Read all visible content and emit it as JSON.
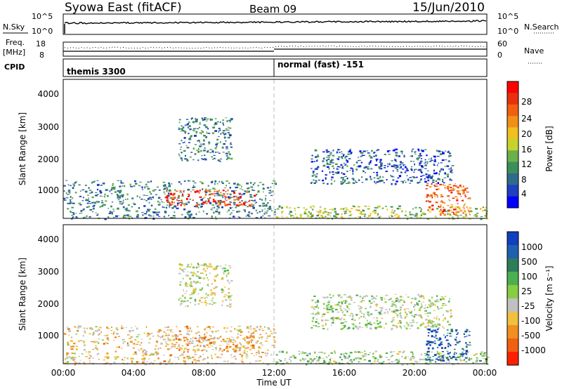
{
  "header": {
    "station": "Syowa East (fitACF)",
    "beam": "Beam 09",
    "date": "15/Jun/2010"
  },
  "nsky_panel": {
    "label": "N.Sky",
    "y_ticks": [
      "10^5",
      "10^0"
    ],
    "right_label": "N.Search",
    "right_ticks": [
      "10^5",
      "10^0"
    ]
  },
  "freq_panel": {
    "label_line1": "Freq.",
    "label_line2": "[MHz]",
    "y_ticks": [
      "18",
      "8"
    ],
    "right_label": "Nave",
    "right_ticks": [
      "60",
      "0"
    ]
  },
  "cpid_panel": {
    "label": "CPID",
    "segments": [
      "themis 3300",
      "normal (fast) -151"
    ]
  },
  "power_panel": {
    "ylabel": "Slant Range [km]",
    "y_ticks": [
      "4000",
      "3000",
      "2000",
      "1000"
    ],
    "colorbar_label": "Power [dB]",
    "colorbar_ticks": [
      "28",
      "24",
      "20",
      "16",
      "12",
      "8",
      "4"
    ],
    "colors": [
      "#0000ff",
      "#1f3fbf",
      "#2e6b8a",
      "#3c8f5a",
      "#6ab04c",
      "#c8d22e",
      "#f0c020",
      "#f09018",
      "#f06010",
      "#e83010",
      "#ff0000"
    ]
  },
  "velocity_panel": {
    "ylabel": "Slant Range [km]",
    "y_ticks": [
      "4000",
      "3000",
      "2000",
      "1000"
    ],
    "colorbar_label": "Velocity [m s⁻¹]",
    "colorbar_ticks": [
      "1000",
      "500",
      "100",
      "25",
      "-25",
      "-100",
      "-500",
      "-1000"
    ],
    "colors": [
      "#1040c0",
      "#2060b0",
      "#2e7d5a",
      "#4caf50",
      "#88cc44",
      "#c0c0c0",
      "#f0c040",
      "#f09020",
      "#f06010",
      "#ff2000"
    ]
  },
  "x_axis": {
    "ticks": [
      "00:00",
      "04:00",
      "08:00",
      "12:00",
      "16:00",
      "20:00",
      "00:00"
    ],
    "label": "Time UT"
  },
  "chart_data": [
    {
      "type": "heatmap",
      "title": "Power [dB]",
      "xlabel": "Time UT",
      "ylabel": "Slant Range [km]",
      "xlim": [
        "00:00",
        "24:00"
      ],
      "ylim": [
        180,
        4600
      ],
      "zlim": [
        0,
        30
      ],
      "regions": [
        {
          "t_start": 0.0,
          "t_end": 12.0,
          "r_min": 180,
          "r_max": 1400,
          "z": 8
        },
        {
          "t_start": 5.7,
          "t_end": 10.8,
          "r_min": 600,
          "r_max": 1100,
          "z": 26
        },
        {
          "t_start": 6.5,
          "t_end": 9.5,
          "r_min": 2000,
          "r_max": 3400,
          "z": 8
        },
        {
          "t_start": 12.0,
          "t_end": 24.0,
          "r_min": 180,
          "r_max": 600,
          "z": 14
        },
        {
          "t_start": 14.0,
          "t_end": 22.0,
          "r_min": 1300,
          "r_max": 2400,
          "z": 6
        },
        {
          "t_start": 20.5,
          "t_end": 23.0,
          "r_min": 300,
          "r_max": 1300,
          "z": 24
        }
      ]
    },
    {
      "type": "heatmap",
      "title": "Velocity [m s⁻¹]",
      "xlabel": "Time UT",
      "ylabel": "Slant Range [km]",
      "xlim": [
        "00:00",
        "24:00"
      ],
      "ylim": [
        180,
        4600
      ],
      "zlim": [
        -1000,
        1000
      ],
      "regions": [
        {
          "t_start": 0.0,
          "t_end": 12.0,
          "r_min": 180,
          "r_max": 1400,
          "z": -300
        },
        {
          "t_start": 5.7,
          "t_end": 10.8,
          "r_min": 600,
          "r_max": 1100,
          "z": -400
        },
        {
          "t_start": 6.5,
          "t_end": 9.5,
          "r_min": 2000,
          "r_max": 3400,
          "z": -100
        },
        {
          "t_start": 12.0,
          "t_end": 24.0,
          "r_min": 180,
          "r_max": 600,
          "z": 100
        },
        {
          "t_start": 14.0,
          "t_end": 22.0,
          "r_min": 1300,
          "r_max": 2400,
          "z": 50
        },
        {
          "t_start": 20.5,
          "t_end": 23.0,
          "r_min": 300,
          "r_max": 1300,
          "z": 800
        }
      ]
    }
  ]
}
